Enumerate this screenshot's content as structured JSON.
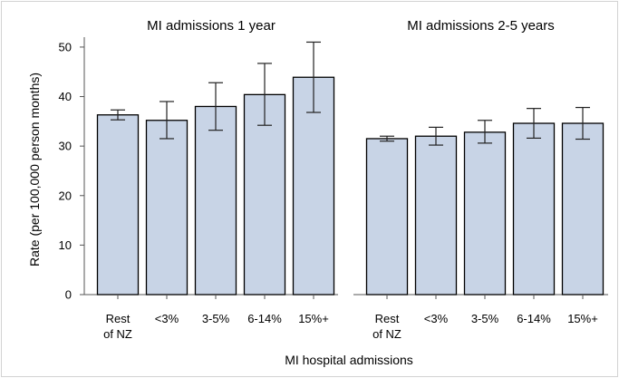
{
  "chart_data": {
    "type": "bar",
    "xlabel": "MI hospital admissions",
    "ylabel": "Rate (per 100,000 person months)",
    "ylim": [
      0,
      52
    ],
    "yticks": [
      0,
      10,
      20,
      30,
      40,
      50
    ],
    "grid": false,
    "error_bars": true,
    "colors": {
      "bar_fill": "#c8d4e6",
      "bar_stroke": "#000000",
      "axis": "#555555"
    },
    "panels": [
      {
        "title": "MI admissions 1 year",
        "categories": [
          "Rest of NZ",
          "<3%",
          "3-5%",
          "6-14%",
          "15%+"
        ],
        "values": [
          36.3,
          35.2,
          38.0,
          40.4,
          43.9
        ],
        "lower": [
          35.3,
          31.5,
          33.2,
          34.2,
          36.8
        ],
        "upper": [
          37.3,
          39.0,
          42.8,
          46.7,
          51.0
        ]
      },
      {
        "title": "MI admissions 2-5 years",
        "categories": [
          "Rest of NZ",
          "<3%",
          "3-5%",
          "6-14%",
          "15%+"
        ],
        "values": [
          31.5,
          32.0,
          32.8,
          34.6,
          34.6
        ],
        "lower": [
          31.0,
          30.2,
          30.6,
          31.6,
          31.4
        ],
        "upper": [
          32.0,
          33.8,
          35.2,
          37.6,
          37.8
        ]
      }
    ]
  }
}
